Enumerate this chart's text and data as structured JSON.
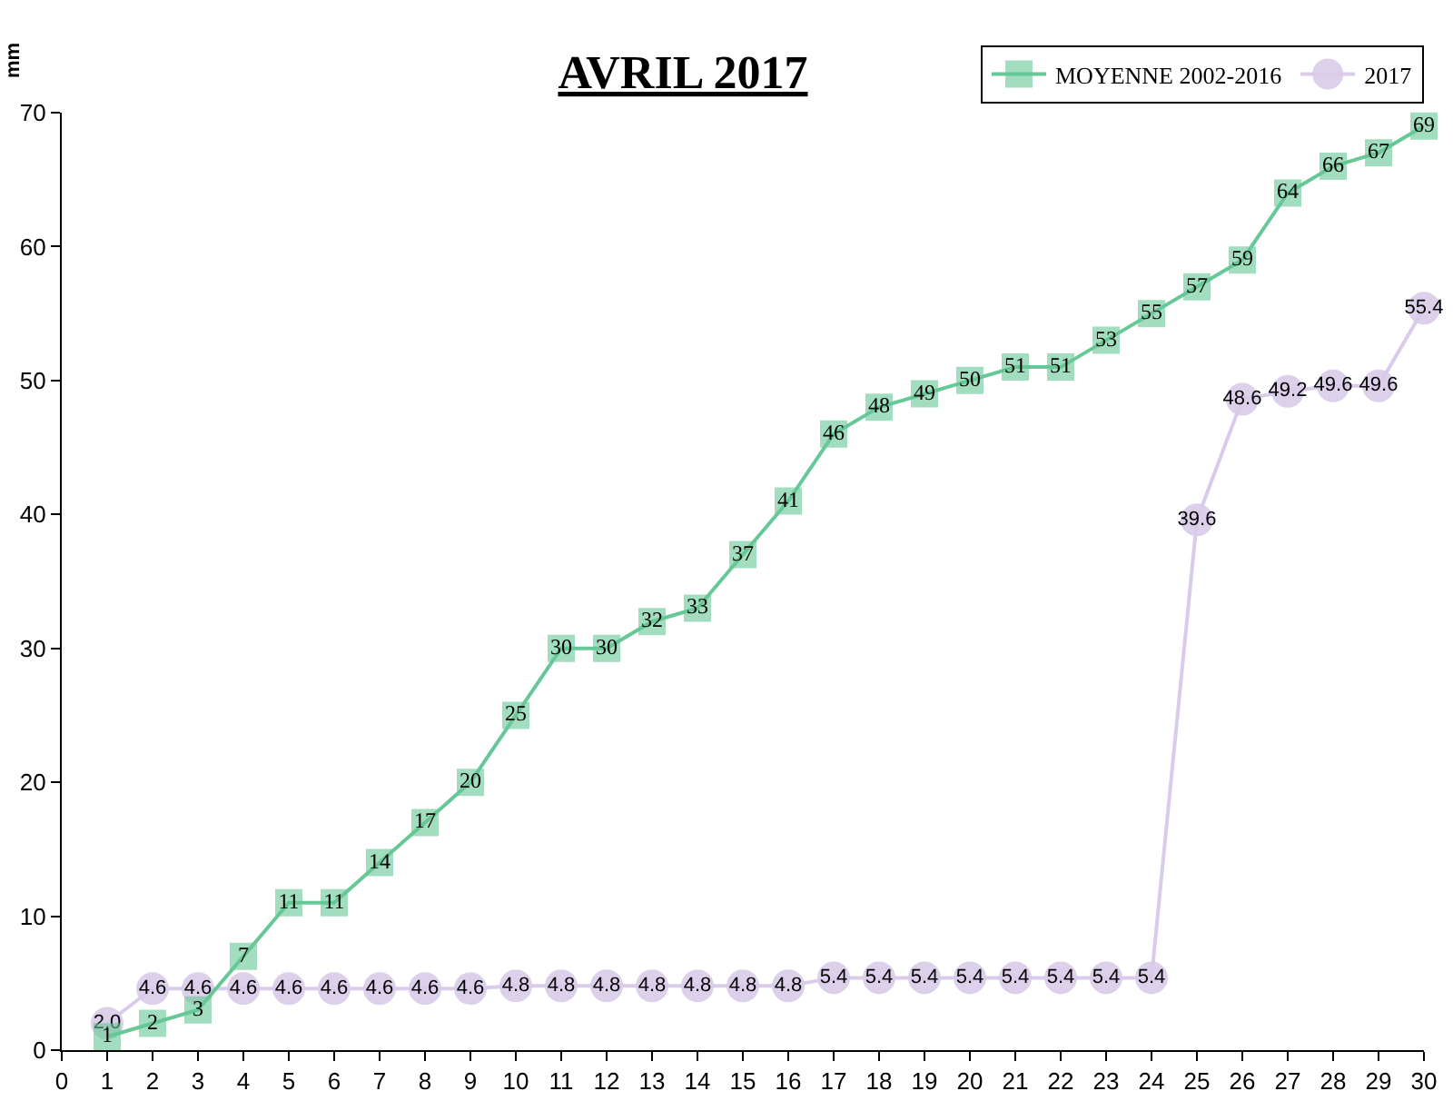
{
  "chart_data": {
    "type": "line",
    "title": "AVRIL 2017",
    "ylabel": "mm",
    "x": [
      1,
      2,
      3,
      4,
      5,
      6,
      7,
      8,
      9,
      10,
      11,
      12,
      13,
      14,
      15,
      16,
      17,
      18,
      19,
      20,
      21,
      22,
      23,
      24,
      25,
      26,
      27,
      28,
      29,
      30
    ],
    "xlim": [
      0,
      30
    ],
    "xticks": [
      0,
      1,
      2,
      3,
      4,
      5,
      6,
      7,
      8,
      9,
      10,
      11,
      12,
      13,
      14,
      15,
      16,
      17,
      18,
      19,
      20,
      21,
      22,
      23,
      24,
      25,
      26,
      27,
      28,
      29,
      30
    ],
    "ylim": [
      0,
      70
    ],
    "yticks": [
      0,
      10,
      20,
      30,
      40,
      50,
      60,
      70
    ],
    "grid": false,
    "legend": "top right",
    "series": [
      {
        "name": "MOYENNE 2002-2016",
        "color": "#66c896",
        "marker": "square",
        "values": [
          1,
          2,
          3,
          7,
          11,
          11,
          14,
          17,
          20,
          25,
          30,
          30,
          32,
          33,
          37,
          41,
          46,
          48,
          49,
          50,
          51,
          51,
          53,
          55,
          57,
          59,
          64,
          66,
          67,
          69
        ],
        "value_labels": [
          "1",
          "2",
          "3",
          "7",
          "11",
          "11",
          "14",
          "17",
          "20",
          "25",
          "30",
          "30",
          "32",
          "33",
          "37",
          "41",
          "46",
          "48",
          "49",
          "50",
          "51",
          "51",
          "53",
          "55",
          "57",
          "59",
          "64",
          "66",
          "67",
          "69"
        ]
      },
      {
        "name": "2017",
        "color": "#d9cbe9",
        "marker": "circle",
        "values": [
          2.0,
          4.6,
          4.6,
          4.6,
          4.6,
          4.6,
          4.6,
          4.6,
          4.6,
          4.8,
          4.8,
          4.8,
          4.8,
          4.8,
          4.8,
          4.8,
          5.4,
          5.4,
          5.4,
          5.4,
          5.4,
          5.4,
          5.4,
          5.4,
          39.6,
          48.6,
          49.2,
          49.6,
          49.6,
          55.4
        ],
        "value_labels": [
          "2.0",
          "4.6",
          "4.6",
          "4.6",
          "4.6",
          "4.6",
          "4.6",
          "4.6",
          "4.6",
          "4.8",
          "4.8",
          "4.8",
          "4.8",
          "4.8",
          "4.8",
          "4.8",
          "5.4",
          "5.4",
          "5.4",
          "5.4",
          "5.4",
          "5.4",
          "5.4",
          "5.4",
          "39.6",
          "48.6",
          "49.2",
          "49.6",
          "49.6",
          "55.4"
        ]
      }
    ]
  }
}
